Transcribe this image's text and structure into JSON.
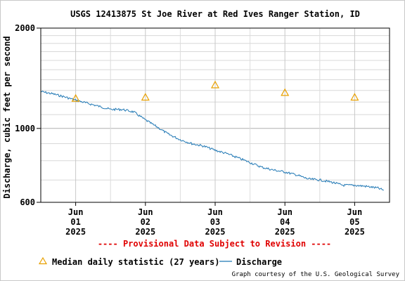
{
  "chart_data": {
    "type": "line",
    "title": "USGS 12413875 St Joe River at Red Ives Ranger Station, ID",
    "ylabel": "Discharge, cubic feet per second",
    "xlabel": "",
    "y_scale": "log",
    "ylim": [
      600,
      2000
    ],
    "y_ticks": [
      600,
      1000,
      2000
    ],
    "y_tick_labels": [
      "600",
      "1000",
      "2000"
    ],
    "xlim": [
      "2025-05-31T12:00",
      "2025-06-05T12:00"
    ],
    "x_ticks": [
      {
        "date": "2025-06-01T00:00",
        "label": [
          "Jun",
          "01",
          "2025"
        ]
      },
      {
        "date": "2025-06-02T00:00",
        "label": [
          "Jun",
          "02",
          "2025"
        ]
      },
      {
        "date": "2025-06-03T00:00",
        "label": [
          "Jun",
          "03",
          "2025"
        ]
      },
      {
        "date": "2025-06-04T00:00",
        "label": [
          "Jun",
          "04",
          "2025"
        ]
      },
      {
        "date": "2025-06-05T00:00",
        "label": [
          "Jun",
          "05",
          "2025"
        ]
      }
    ],
    "grid": true,
    "series": [
      {
        "name": "Discharge",
        "type": "line",
        "color": "#1f77b4",
        "points": [
          {
            "x": "2025-05-31T12:00",
            "y": 1290
          },
          {
            "x": "2025-05-31T16:00",
            "y": 1270
          },
          {
            "x": "2025-05-31T20:00",
            "y": 1245
          },
          {
            "x": "2025-06-01T00:00",
            "y": 1215
          },
          {
            "x": "2025-06-01T04:00",
            "y": 1190
          },
          {
            "x": "2025-06-01T08:00",
            "y": 1165
          },
          {
            "x": "2025-06-01T12:00",
            "y": 1140
          },
          {
            "x": "2025-06-01T16:00",
            "y": 1140
          },
          {
            "x": "2025-06-01T20:00",
            "y": 1120
          },
          {
            "x": "2025-06-02T00:00",
            "y": 1060
          },
          {
            "x": "2025-06-02T04:00",
            "y": 1010
          },
          {
            "x": "2025-06-02T08:00",
            "y": 960
          },
          {
            "x": "2025-06-02T12:00",
            "y": 925
          },
          {
            "x": "2025-06-02T16:00",
            "y": 900
          },
          {
            "x": "2025-06-02T20:00",
            "y": 885
          },
          {
            "x": "2025-06-03T00:00",
            "y": 860
          },
          {
            "x": "2025-06-03T04:00",
            "y": 840
          },
          {
            "x": "2025-06-03T08:00",
            "y": 815
          },
          {
            "x": "2025-06-03T12:00",
            "y": 790
          },
          {
            "x": "2025-06-03T16:00",
            "y": 765
          },
          {
            "x": "2025-06-03T20:00",
            "y": 750
          },
          {
            "x": "2025-06-04T00:00",
            "y": 740
          },
          {
            "x": "2025-06-04T04:00",
            "y": 725
          },
          {
            "x": "2025-06-04T08:00",
            "y": 705
          },
          {
            "x": "2025-06-04T12:00",
            "y": 700
          },
          {
            "x": "2025-06-04T16:00",
            "y": 690
          },
          {
            "x": "2025-06-04T20:00",
            "y": 675
          },
          {
            "x": "2025-06-05T00:00",
            "y": 675
          },
          {
            "x": "2025-06-05T04:00",
            "y": 670
          },
          {
            "x": "2025-06-05T08:00",
            "y": 662
          },
          {
            "x": "2025-06-05T10:00",
            "y": 652
          }
        ]
      },
      {
        "name": "Median daily statistic (27 years)",
        "type": "scatter",
        "marker": "triangle",
        "color": "#e8a000",
        "points": [
          {
            "x": "2025-06-01T00:00",
            "y": 1230
          },
          {
            "x": "2025-06-02T00:00",
            "y": 1240
          },
          {
            "x": "2025-06-03T00:00",
            "y": 1350
          },
          {
            "x": "2025-06-04T00:00",
            "y": 1280
          },
          {
            "x": "2025-06-05T00:00",
            "y": 1240
          }
        ]
      }
    ],
    "annotation": "---- Provisional Data Subject to Revision ----",
    "legend_position": "bottom"
  },
  "footer": {
    "credit": "Graph courtesy of the U.S. Geological Survey"
  }
}
